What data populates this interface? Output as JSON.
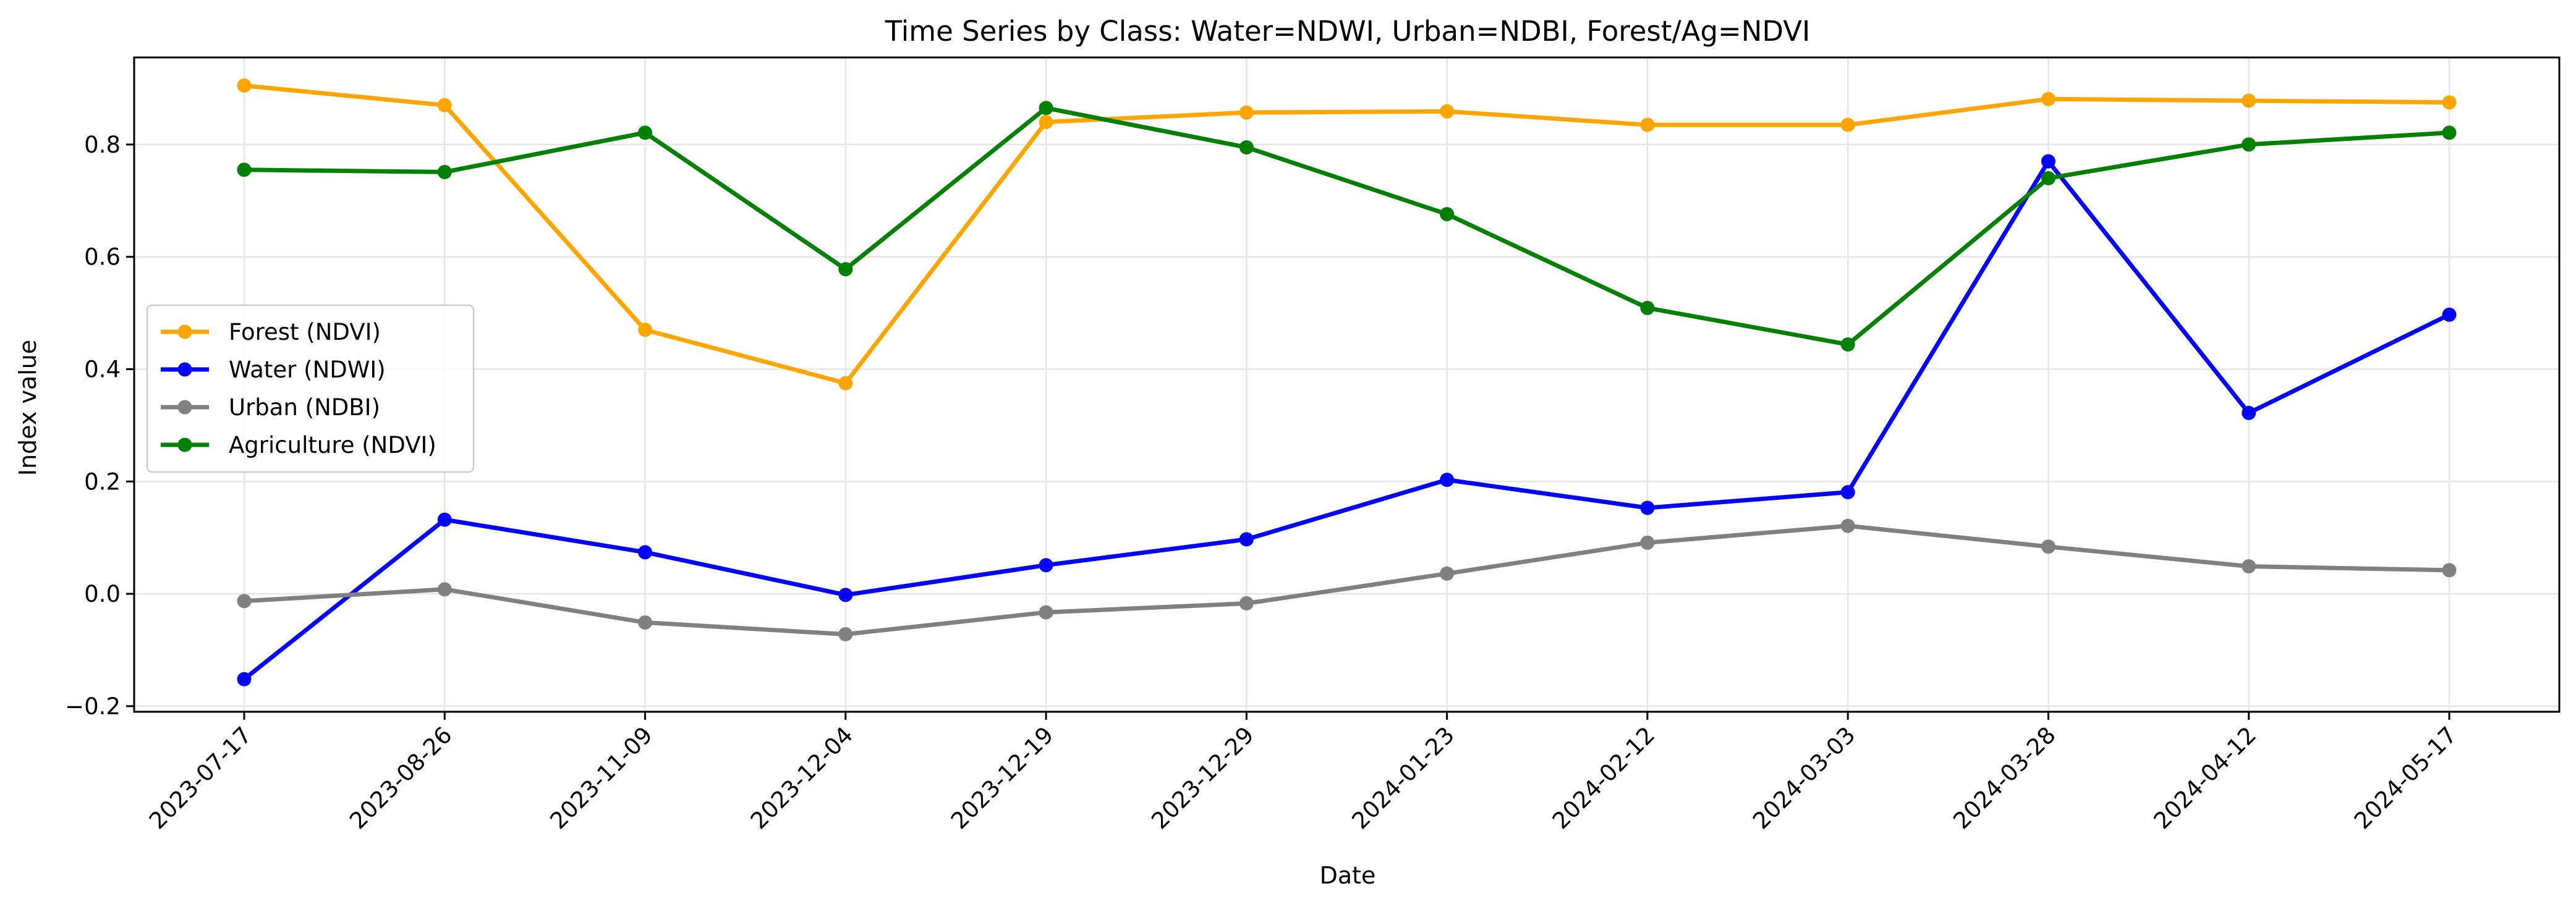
{
  "chart_data": {
    "type": "line",
    "title": "Time Series by Class: Water=NDWI, Urban=NDBI, Forest/Ag=NDVI",
    "xlabel": "Date",
    "ylabel": "Index value",
    "x": [
      "2023-07-17",
      "2023-08-26",
      "2023-11-09",
      "2023-12-04",
      "2023-12-19",
      "2023-12-29",
      "2024-01-23",
      "2024-02-12",
      "2024-03-03",
      "2024-03-28",
      "2024-04-12",
      "2024-05-17"
    ],
    "ylim": [
      -0.21,
      0.955
    ],
    "yticks": [
      -0.2,
      0.0,
      0.2,
      0.4,
      0.6,
      0.8
    ],
    "ytick_labels": [
      "−0.2",
      "0.0",
      "0.2",
      "0.4",
      "0.6",
      "0.8"
    ],
    "grid": true,
    "legend_position": "center-left",
    "series": [
      {
        "name": "Forest (NDVI)",
        "color": "#ffa500",
        "values": [
          0.905,
          0.87,
          0.47,
          0.375,
          0.84,
          0.857,
          0.859,
          0.835,
          0.835,
          0.881,
          0.878,
          0.875
        ]
      },
      {
        "name": "Water (NDWI)",
        "color": "#0000ff",
        "values": [
          -0.152,
          0.132,
          0.074,
          -0.002,
          0.051,
          0.097,
          0.203,
          0.153,
          0.181,
          0.77,
          0.322,
          0.497
        ]
      },
      {
        "name": "Urban (NDBI)",
        "color": "#808080",
        "values": [
          -0.013,
          0.008,
          -0.051,
          -0.072,
          -0.033,
          -0.017,
          0.036,
          0.091,
          0.121,
          0.084,
          0.049,
          0.042
        ]
      },
      {
        "name": "Agriculture (NDVI)",
        "color": "#008000",
        "values": [
          0.755,
          0.751,
          0.821,
          0.578,
          0.865,
          0.795,
          0.676,
          0.509,
          0.444,
          0.74,
          0.8,
          0.821
        ]
      }
    ]
  }
}
